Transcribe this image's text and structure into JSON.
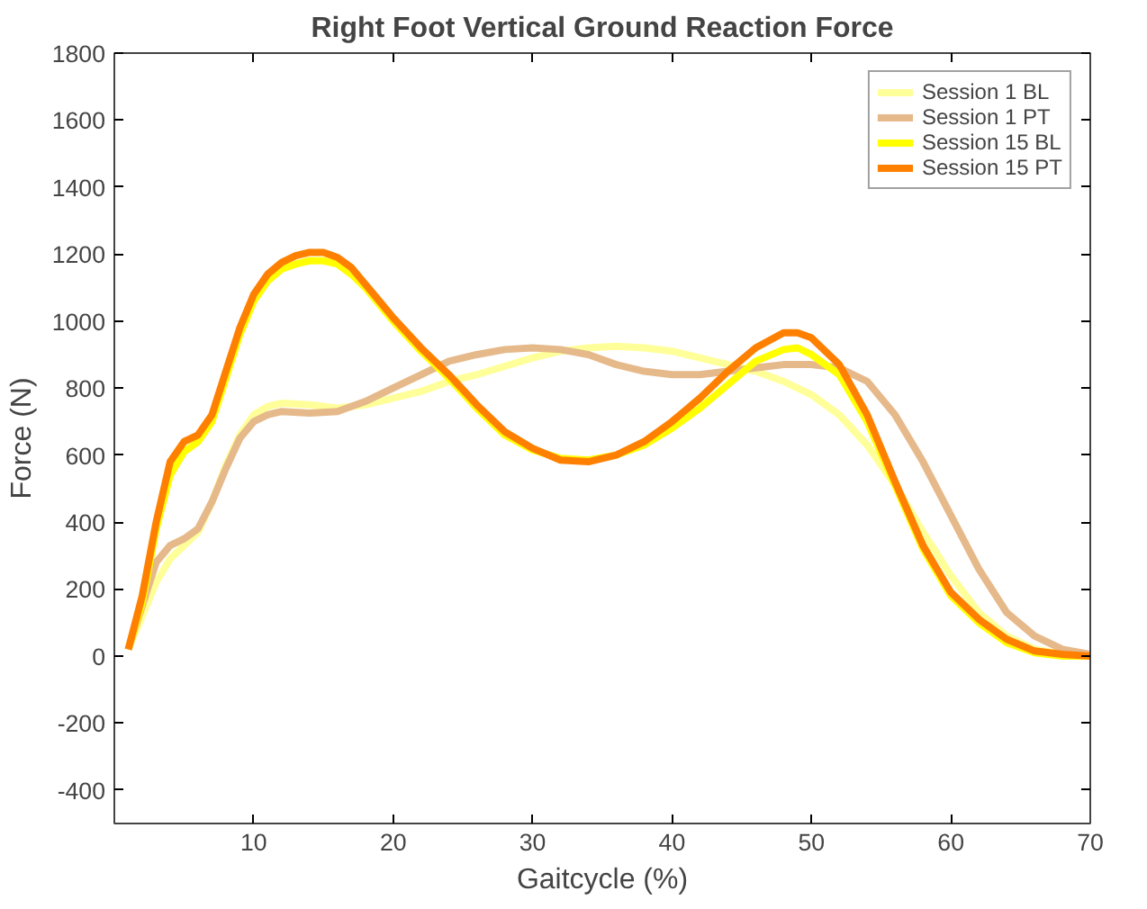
{
  "chart_data": {
    "type": "line",
    "title": "Right Foot Vertical Ground Reaction Force",
    "xlabel": "Gaitcycle (%)",
    "ylabel": "Force (N)",
    "xlim": [
      0,
      70
    ],
    "ylim": [
      -500,
      1800
    ],
    "xticks": [
      10,
      20,
      30,
      40,
      50,
      60,
      70
    ],
    "yticks": [
      -400,
      -200,
      0,
      200,
      400,
      600,
      800,
      1000,
      1200,
      1400,
      1600,
      1800
    ],
    "grid": false,
    "legend": "top right",
    "line_style": "solid",
    "series": [
      {
        "name": "Session 1 BL",
        "color": "#ffff99",
        "x": [
          1,
          2,
          3,
          4,
          5,
          6,
          7,
          8,
          9,
          10,
          11,
          12,
          14,
          16,
          18,
          20,
          22,
          24,
          26,
          28,
          30,
          32,
          34,
          36,
          38,
          40,
          42,
          44,
          46,
          48,
          50,
          52,
          54,
          56,
          58,
          60,
          62,
          64,
          66,
          68,
          70
        ],
        "values": [
          20,
          120,
          220,
          290,
          330,
          370,
          460,
          570,
          660,
          720,
          745,
          755,
          750,
          740,
          750,
          770,
          790,
          820,
          840,
          865,
          890,
          910,
          920,
          925,
          920,
          910,
          890,
          870,
          850,
          820,
          780,
          720,
          630,
          510,
          370,
          240,
          130,
          60,
          20,
          5,
          0
        ]
      },
      {
        "name": "Session 1 PT",
        "color": "#e6b98a",
        "x": [
          1,
          2,
          3,
          4,
          5,
          6,
          7,
          8,
          9,
          10,
          11,
          12,
          14,
          16,
          18,
          20,
          22,
          24,
          26,
          28,
          30,
          32,
          34,
          36,
          38,
          40,
          42,
          44,
          46,
          48,
          50,
          52,
          54,
          56,
          58,
          60,
          62,
          64,
          66,
          68,
          70
        ],
        "values": [
          20,
          150,
          280,
          330,
          350,
          380,
          460,
          560,
          650,
          700,
          720,
          730,
          725,
          730,
          760,
          800,
          840,
          880,
          900,
          915,
          920,
          915,
          900,
          870,
          850,
          840,
          840,
          850,
          860,
          870,
          870,
          860,
          820,
          720,
          580,
          420,
          260,
          130,
          60,
          20,
          5
        ]
      },
      {
        "name": "Session 15 BL",
        "color": "#ffff00",
        "x": [
          1,
          2,
          3,
          4,
          5,
          6,
          7,
          8,
          9,
          10,
          11,
          12,
          13,
          14,
          15,
          16,
          17,
          18,
          19,
          20,
          22,
          24,
          26,
          28,
          30,
          32,
          34,
          36,
          38,
          40,
          42,
          44,
          46,
          48,
          49,
          50,
          52,
          54,
          56,
          58,
          60,
          62,
          64,
          66,
          68,
          70
        ],
        "values": [
          20,
          160,
          380,
          540,
          610,
          640,
          700,
          830,
          960,
          1060,
          1120,
          1155,
          1170,
          1180,
          1180,
          1170,
          1140,
          1100,
          1050,
          1000,
          910,
          830,
          740,
          660,
          615,
          590,
          585,
          600,
          630,
          680,
          740,
          810,
          880,
          915,
          920,
          900,
          840,
          700,
          510,
          320,
          180,
          100,
          40,
          10,
          0,
          0
        ]
      },
      {
        "name": "Session 15 PT",
        "color": "#ff8000",
        "x": [
          1,
          2,
          3,
          4,
          5,
          6,
          7,
          8,
          9,
          10,
          11,
          12,
          13,
          14,
          15,
          16,
          17,
          18,
          19,
          20,
          22,
          24,
          26,
          28,
          30,
          32,
          34,
          36,
          38,
          40,
          42,
          44,
          46,
          48,
          49,
          50,
          52,
          54,
          56,
          58,
          60,
          62,
          64,
          66,
          68,
          70
        ],
        "values": [
          20,
          180,
          400,
          580,
          640,
          660,
          720,
          850,
          980,
          1080,
          1140,
          1175,
          1195,
          1205,
          1205,
          1190,
          1160,
          1110,
          1060,
          1010,
          920,
          840,
          750,
          670,
          620,
          585,
          580,
          600,
          640,
          700,
          770,
          850,
          920,
          965,
          965,
          950,
          870,
          720,
          520,
          330,
          190,
          110,
          50,
          15,
          5,
          0
        ]
      }
    ]
  }
}
